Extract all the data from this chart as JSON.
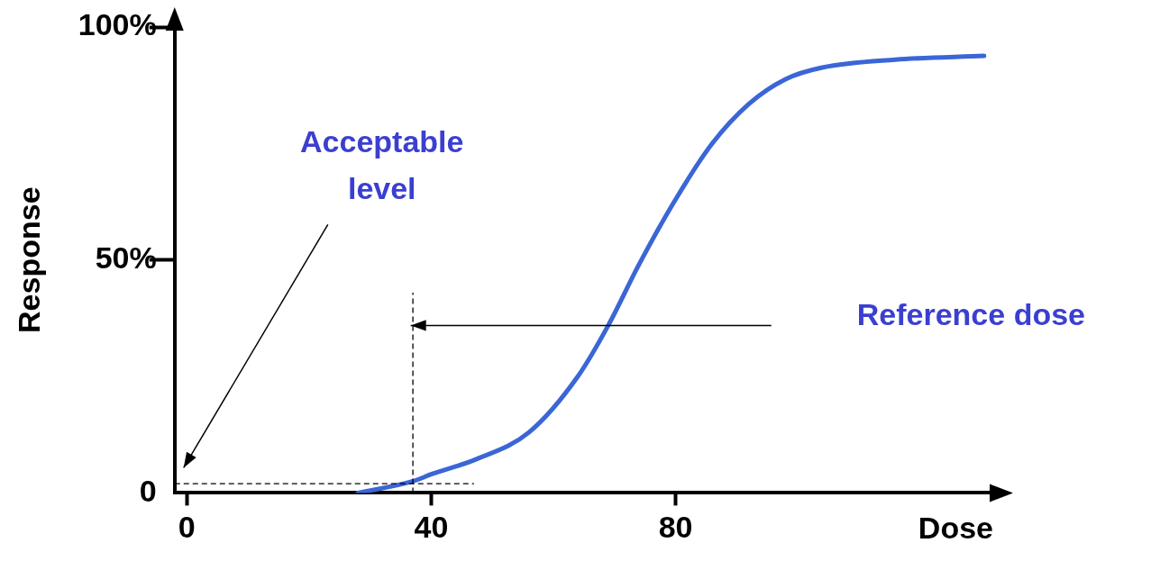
{
  "chart_data": {
    "type": "line",
    "xlabel": "Dose",
    "ylabel": "Response",
    "xlim": [
      -2,
      132
    ],
    "xticks": [
      0,
      40,
      80
    ],
    "ylim": [
      0,
      100
    ],
    "yticks": [
      {
        "value": 0,
        "label": "0"
      },
      {
        "value": 50,
        "label": "50%"
      },
      {
        "value": 100,
        "label": "100%"
      }
    ],
    "grid": false,
    "legend": false,
    "marker": "none",
    "line_style": "solid",
    "series": [
      {
        "color": "#3a66d6",
        "x": [
          28,
          37,
          40,
          47.5,
          56,
          64,
          69,
          74,
          80,
          86,
          92,
          98,
          104,
          116,
          130.5
        ],
        "values": [
          0,
          2.5,
          4,
          7.3,
          13,
          25,
          36,
          49,
          63,
          75,
          83.5,
          88.8,
          91.3,
          93,
          93.8
        ]
      }
    ],
    "ref_lines": [
      {
        "axis": "x",
        "value": 37,
        "line_style": "dashed",
        "color": "#000000"
      },
      {
        "axis": "y",
        "value": 2,
        "line_style": "dashed",
        "color": "#000000"
      }
    ],
    "annotations": [
      "Acceptable level",
      "Reference dose"
    ]
  }
}
